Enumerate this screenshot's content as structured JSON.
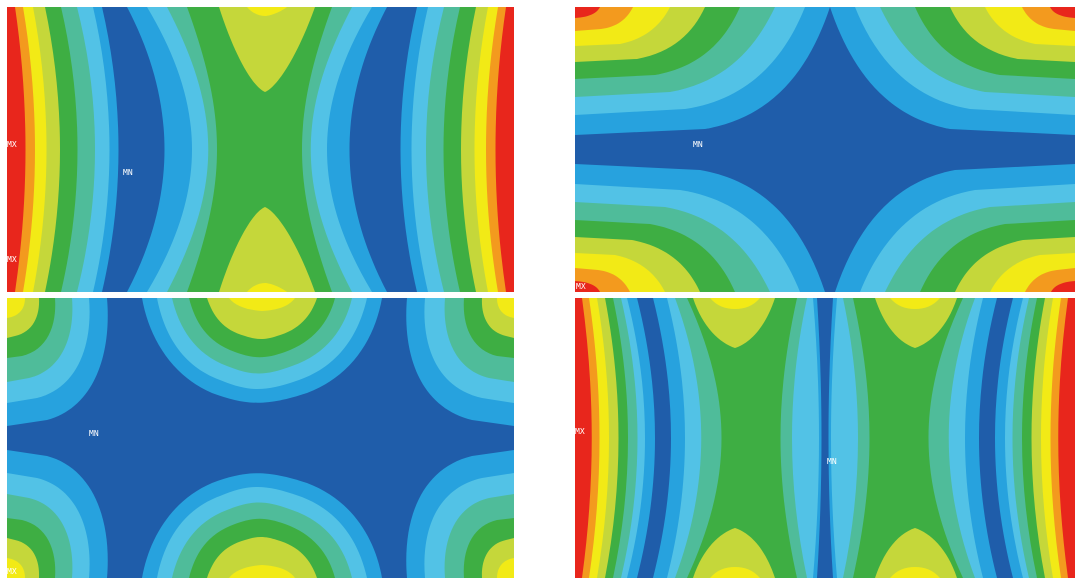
{
  "colors": {
    "red": "#e8261c",
    "orange": "#f39a1e",
    "yellow": "#f2ea16",
    "yellowgreen": "#c5d73a",
    "green": "#3eae43",
    "teal": "#4fbc9a",
    "lightblue": "#52c2e6",
    "midblue": "#27a2de",
    "darkblue": "#1f5daa"
  },
  "plots": [
    {
      "min_label": "MN",
      "mx_label": "MX",
      "corner_label": "MX"
    },
    {
      "min_label": "MN",
      "corner_label": "MX"
    },
    {
      "min_label": "MN",
      "corner_label": "MX"
    },
    {
      "min_label": "MN",
      "mx_label": "MX"
    }
  ]
}
